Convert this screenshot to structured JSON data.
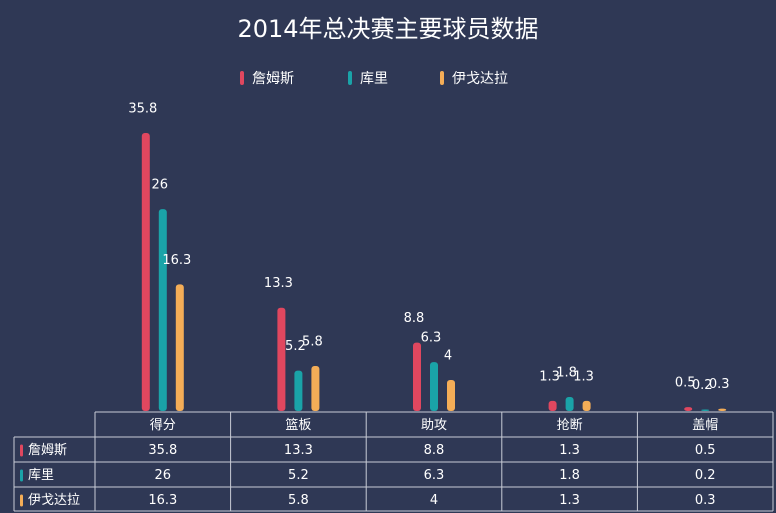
{
  "chart_data": {
    "type": "bar",
    "title": "2014年总决赛主要球员数据",
    "categories": [
      "得分",
      "篮板",
      "助攻",
      "抢断",
      "盖帽"
    ],
    "series": [
      {
        "name": "詹姆斯",
        "color": "#e0475f",
        "values": [
          35.8,
          13.3,
          8.8,
          1.3,
          0.5
        ]
      },
      {
        "name": "库里",
        "color": "#1aa3a8",
        "values": [
          26,
          5.2,
          6.3,
          1.8,
          0.2
        ]
      },
      {
        "name": "伊戈达拉",
        "color": "#f4ad57",
        "values": [
          16.3,
          5.8,
          4,
          1.3,
          0.3
        ]
      }
    ]
  }
}
